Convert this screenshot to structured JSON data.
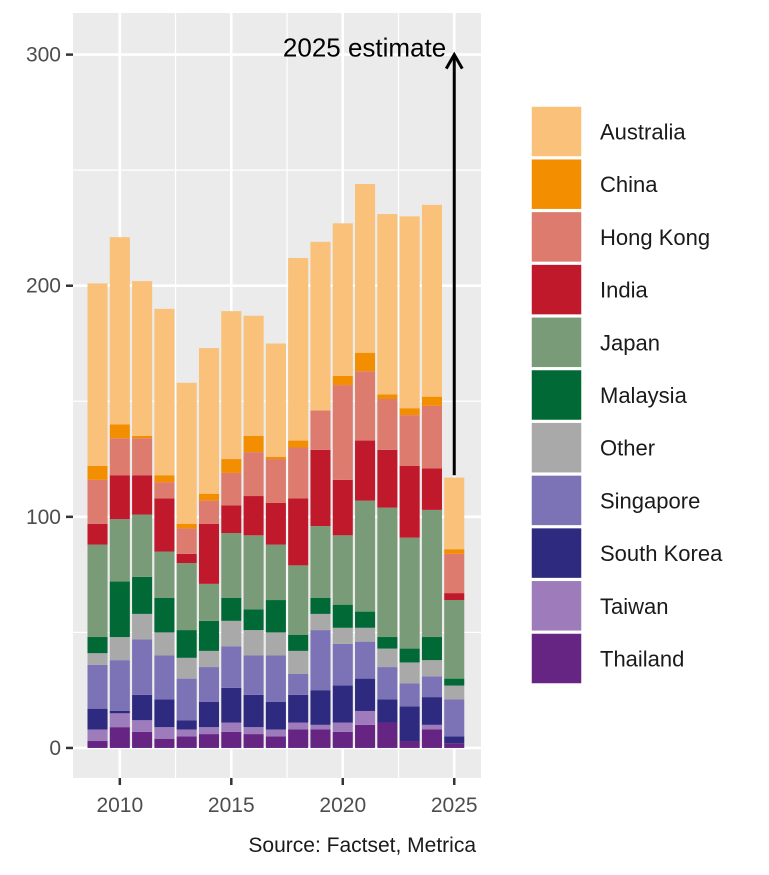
{
  "chart_data": {
    "type": "bar",
    "stacked": true,
    "x": [
      2009,
      2010,
      2011,
      2012,
      2013,
      2014,
      2015,
      2016,
      2017,
      2018,
      2019,
      2020,
      2021,
      2022,
      2023,
      2024,
      2025
    ],
    "x_tick_labels": [
      "2010",
      "2015",
      "2020",
      "2025"
    ],
    "y_tick_labels": [
      "0",
      "100",
      "200",
      "300"
    ],
    "xlim": [
      2007.9,
      2026.2
    ],
    "ylim": [
      -13,
      318
    ],
    "grid": true,
    "legend_position": "right",
    "series": [
      {
        "name": "Thailand",
        "color": "#662483",
        "values": [
          3,
          9,
          7,
          4,
          5,
          6,
          7,
          6,
          5,
          8,
          8,
          7,
          10,
          11,
          3,
          8,
          2
        ]
      },
      {
        "name": "Taiwan",
        "color": "#9e7bbb",
        "values": [
          5,
          6,
          5,
          5,
          3,
          3,
          4,
          3,
          3,
          3,
          2,
          4,
          6,
          0,
          0,
          2,
          0
        ]
      },
      {
        "name": "South Korea",
        "color": "#2e2a80",
        "values": [
          9,
          1,
          11,
          12,
          4,
          11,
          15,
          14,
          12,
          12,
          15,
          16,
          14,
          10,
          15,
          12,
          3
        ]
      },
      {
        "name": "Singapore",
        "color": "#7b73b5",
        "values": [
          19,
          22,
          24,
          19,
          18,
          15,
          18,
          17,
          20,
          9,
          26,
          18,
          16,
          14,
          10,
          9,
          16
        ]
      },
      {
        "name": "Other",
        "color": "#a9a9a9",
        "values": [
          5,
          10,
          11,
          10,
          9,
          7,
          11,
          11,
          10,
          10,
          7,
          7,
          6,
          8,
          9,
          7,
          6
        ]
      },
      {
        "name": "Malaysia",
        "color": "#006936",
        "values": [
          7,
          24,
          16,
          15,
          12,
          13,
          10,
          9,
          14,
          7,
          7,
          10,
          7,
          5,
          6,
          10,
          3
        ]
      },
      {
        "name": "Japan",
        "color": "#7a9b78",
        "values": [
          40,
          27,
          27,
          20,
          29,
          16,
          28,
          32,
          24,
          30,
          31,
          30,
          48,
          56,
          48,
          55,
          34
        ]
      },
      {
        "name": "India",
        "color": "#c1192c",
        "values": [
          9,
          19,
          17,
          23,
          4,
          26,
          12,
          17,
          18,
          29,
          33,
          24,
          26,
          25,
          31,
          18,
          3
        ]
      },
      {
        "name": "Hong Kong",
        "color": "#dc7b6e",
        "values": [
          19,
          16,
          16,
          7,
          11,
          10,
          14,
          19,
          19,
          22,
          17,
          41,
          30,
          22,
          22,
          27,
          17
        ]
      },
      {
        "name": "China",
        "color": "#f28e00",
        "values": [
          6,
          6,
          1,
          3,
          2,
          3,
          6,
          7,
          1,
          3,
          0,
          4,
          8,
          2,
          3,
          4,
          2
        ]
      },
      {
        "name": "Australia",
        "color": "#f9c179",
        "values": [
          79,
          81,
          67,
          72,
          61,
          63,
          64,
          52,
          49,
          79,
          73,
          66,
          73,
          78,
          83,
          83,
          31
        ]
      }
    ],
    "legend_order": [
      "Australia",
      "China",
      "Hong Kong",
      "India",
      "Japan",
      "Malaysia",
      "Other",
      "Singapore",
      "South Korea",
      "Taiwan",
      "Thailand"
    ],
    "annotation": {
      "text": "2025 estimate",
      "arrow_x": 2025,
      "arrow_from_y": 118,
      "arrow_to_y": 300
    },
    "caption": "Source: Factset, Metrica",
    "panel_background": "#ebebeb",
    "grid_color": "#ffffff"
  }
}
